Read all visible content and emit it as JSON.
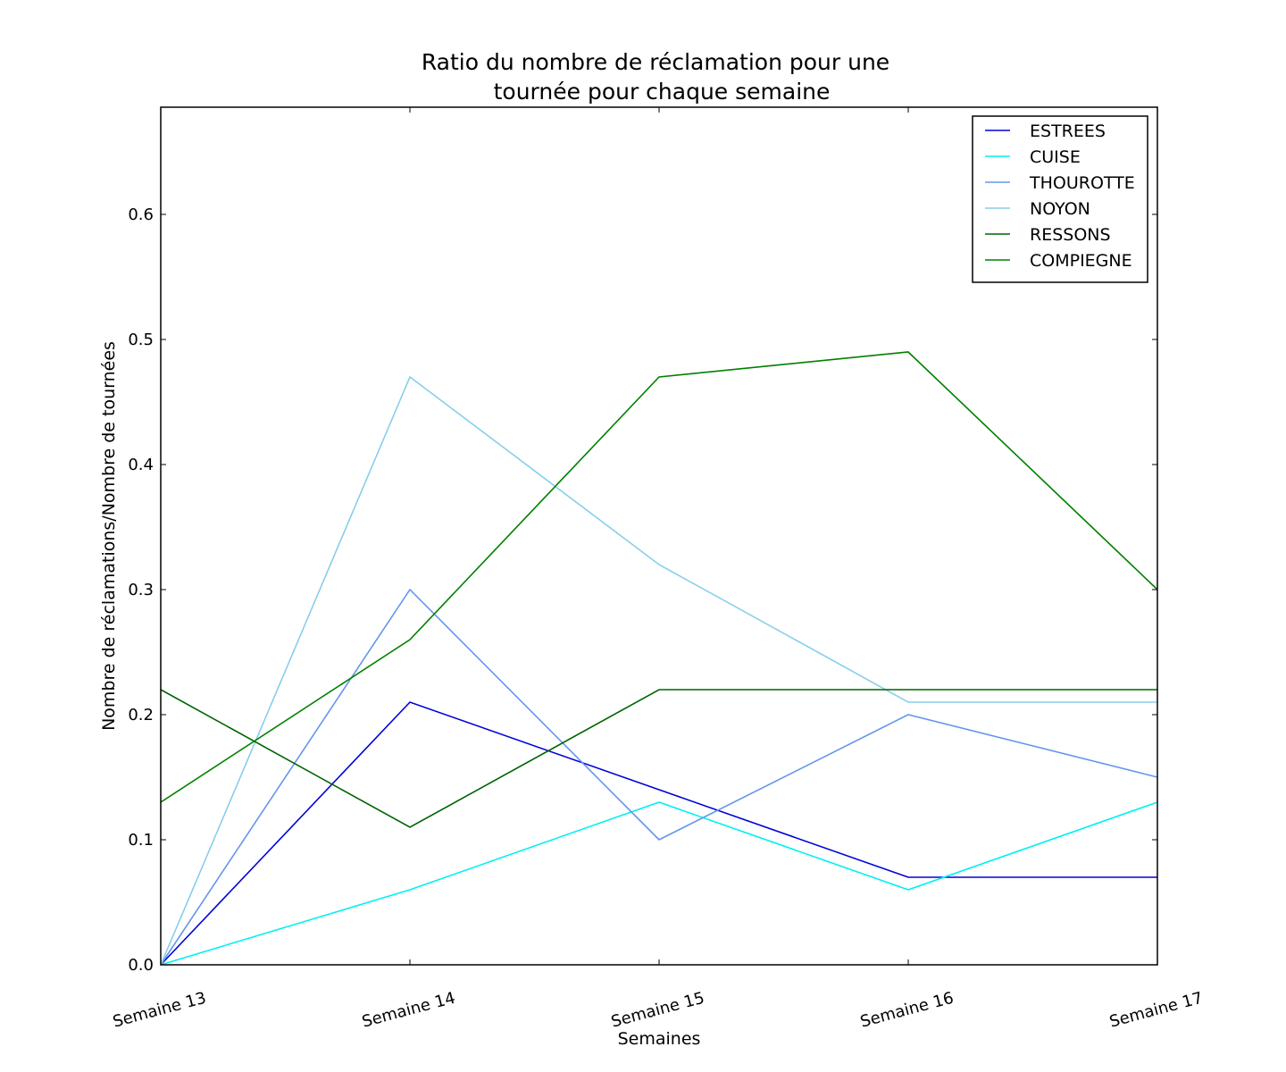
{
  "chart_data": {
    "type": "line",
    "title_lines": [
      "Ratio du nombre de réclamation pour une",
      "tournée pour chaque semaine"
    ],
    "xlabel": "Semaines",
    "ylabel": "Nombre de réclamations/Nombre de tournées",
    "categories": [
      "Semaine 13",
      "Semaine 14",
      "Semaine 15",
      "Semaine 16",
      "Semaine 17"
    ],
    "ylim": [
      0,
      0.6857
    ],
    "yticks": [
      0.0,
      0.1,
      0.2,
      0.3,
      0.4,
      0.5,
      0.6
    ],
    "ytick_labels": [
      "0.0",
      "0.1",
      "0.2",
      "0.3",
      "0.4",
      "0.5",
      "0.6"
    ],
    "grid": false,
    "legend_position": "top-right",
    "series": [
      {
        "name": "ESTREES",
        "color": "#0000dd",
        "values": [
          0.0,
          0.21,
          0.14,
          0.07,
          0.07
        ]
      },
      {
        "name": "CUISE",
        "color": "#00f0f0",
        "values": [
          0.0,
          0.06,
          0.13,
          0.06,
          0.13
        ]
      },
      {
        "name": "THOUROTTE",
        "color": "#6495ed",
        "values": [
          0.0,
          0.3,
          0.1,
          0.2,
          0.15
        ]
      },
      {
        "name": "NOYON",
        "color": "#87ceeb",
        "values": [
          0.0,
          0.47,
          0.32,
          0.21,
          0.21
        ]
      },
      {
        "name": "RESSONS",
        "color": "#006400",
        "values": [
          0.22,
          0.11,
          0.22,
          0.22,
          0.22
        ]
      },
      {
        "name": "COMPIEGNE",
        "color": "#008000",
        "values": [
          0.13,
          0.26,
          0.47,
          0.49,
          0.3
        ]
      }
    ]
  }
}
